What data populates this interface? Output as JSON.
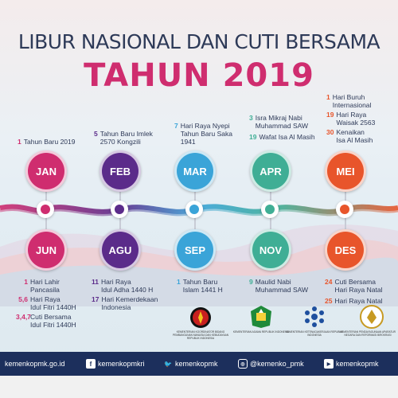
{
  "title_line1": "LIBUR NASIONAL DAN CUTI BERSAMA",
  "title_line2": "TAHUN 2019",
  "months_top": [
    {
      "label": "JAN",
      "color": "#cf2d6f"
    },
    {
      "label": "FEB",
      "color": "#5b2b8a"
    },
    {
      "label": "MAR",
      "color": "#3aa4d8"
    },
    {
      "label": "APR",
      "color": "#3fae95"
    },
    {
      "label": "MEI",
      "color": "#e8552b"
    }
  ],
  "months_bottom": [
    {
      "label": "JUN",
      "color": "#cf2d6f"
    },
    {
      "label": "AGU",
      "color": "#5b2b8a"
    },
    {
      "label": "SEP",
      "color": "#3aa4d8"
    },
    {
      "label": "NOV",
      "color": "#3fae95"
    },
    {
      "label": "DES",
      "color": "#e8552b"
    }
  ],
  "holidays": {
    "jan": [
      {
        "day": "1",
        "text": "Tahun Baru 2019"
      }
    ],
    "feb": [
      {
        "day": "5",
        "text": "Tahun Baru Imlek\n2570 Kongzili"
      }
    ],
    "mar": [
      {
        "day": "7",
        "text": "Hari Raya Nyepi\nTahun Baru Saka\n1941"
      }
    ],
    "apr": [
      {
        "day": "3",
        "text": "Isra Mikraj Nabi\nMuhammad SAW"
      },
      {
        "day": "19",
        "text": "Wafat Isa Al Masih"
      }
    ],
    "mei": [
      {
        "day": "1",
        "text": "Hari Buruh\nInternasional"
      },
      {
        "day": "19",
        "text": "Hari Raya\nWaisak 2563"
      },
      {
        "day": "30",
        "text": "Kenaikan\nIsa Al Masih"
      }
    ],
    "jun": [
      {
        "day": "1",
        "text": "Hari Lahir\nPancasila"
      },
      {
        "day": "5,6",
        "text": "Hari Raya\nIdul Fitri 1440H"
      },
      {
        "day": "3,4,7",
        "text": "Cuti Bersama\nIdul Fitri 1440H"
      }
    ],
    "agu": [
      {
        "day": "11",
        "text": "Hari Raya\nIdul Adha 1440 H"
      },
      {
        "day": "17",
        "text": "Hari Kemerdekaan\nIndonesia"
      }
    ],
    "sep": [
      {
        "day": "1",
        "text": "Tahun Baru\nIslam 1441 H"
      }
    ],
    "nov": [
      {
        "day": "9",
        "text": "Maulid Nabi\nMuhammad SAW"
      }
    ],
    "des": [
      {
        "day": "24",
        "text": "Cuti Bersama\nHari Raya Natal"
      },
      {
        "day": "25",
        "text": "Hari Raya Natal"
      }
    ]
  },
  "logos": [
    {
      "name": "KEMENTERIAN KOORDINATOR BIDANG PEMBANGUNAN MANUSIA DAN KEBUDAYAAN REPUBLIK INDONESIA"
    },
    {
      "name": "KEMENTERIAN AGAMA REPUBLIK INDONESIA"
    },
    {
      "name": "KEMENTERIAN KETENAGAKERJAAN REPUBLIK INDONESIA"
    },
    {
      "name": "KEMENTERIAN PENDAYAGUNAAN APARATUR NEGARA DAN REFORMASI BIROKRASI"
    }
  ],
  "footer": {
    "website": "kemenkopmk.go.id",
    "facebook": "kemenkopmkri",
    "twitter": "kemenkopmk",
    "instagram": "@kemenko_pmk",
    "youtube": "kemenkopmk"
  },
  "colors": {
    "navy": "#2e3a58",
    "magenta": "#cf2d6f",
    "purple": "#5b2b8a",
    "blue": "#3aa4d8",
    "teal": "#3fae95",
    "orange": "#e8552b",
    "footer_bg": "#1c2f5c"
  }
}
